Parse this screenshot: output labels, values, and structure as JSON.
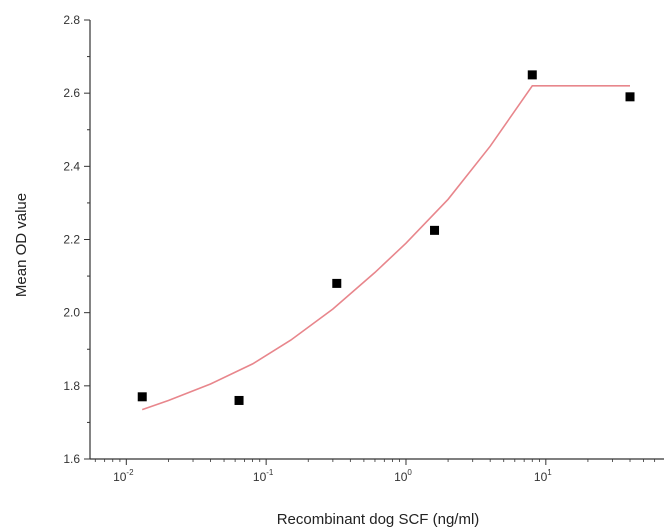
{
  "chart_data": {
    "type": "scatter",
    "title": "",
    "xlabel": "Recombinant dog SCF (ng/ml)",
    "ylabel": "Mean OD value",
    "x_scale": "log",
    "xlim": [
      0.0055,
      70
    ],
    "ylim": [
      1.6,
      2.8
    ],
    "x_ticks": [
      {
        "value": 0.01,
        "base": "10",
        "exp": "-2"
      },
      {
        "value": 0.1,
        "base": "10",
        "exp": "-1"
      },
      {
        "value": 1,
        "base": "10",
        "exp": "0"
      },
      {
        "value": 10,
        "base": "10",
        "exp": "1"
      }
    ],
    "y_ticks": [
      "1.6",
      "1.8",
      "2.0",
      "2.2",
      "2.4",
      "2.6",
      "2.8"
    ],
    "grid": false,
    "series": [
      {
        "kind": "points",
        "color": "#000000",
        "marker": "square",
        "x": [
          0.013,
          0.064,
          0.32,
          1.6,
          8.0,
          40.0
        ],
        "y": [
          1.77,
          1.76,
          2.08,
          2.225,
          2.65,
          2.59
        ]
      },
      {
        "kind": "fit-line",
        "color": "#e8868c",
        "x": [
          0.013,
          0.02,
          0.04,
          0.08,
          0.15,
          0.3,
          0.6,
          1.0,
          2.0,
          4.0,
          8.0,
          40.0
        ],
        "y": [
          1.735,
          1.76,
          1.805,
          1.86,
          1.925,
          2.01,
          2.11,
          2.19,
          2.31,
          2.455,
          2.62,
          2.62
        ]
      }
    ]
  }
}
